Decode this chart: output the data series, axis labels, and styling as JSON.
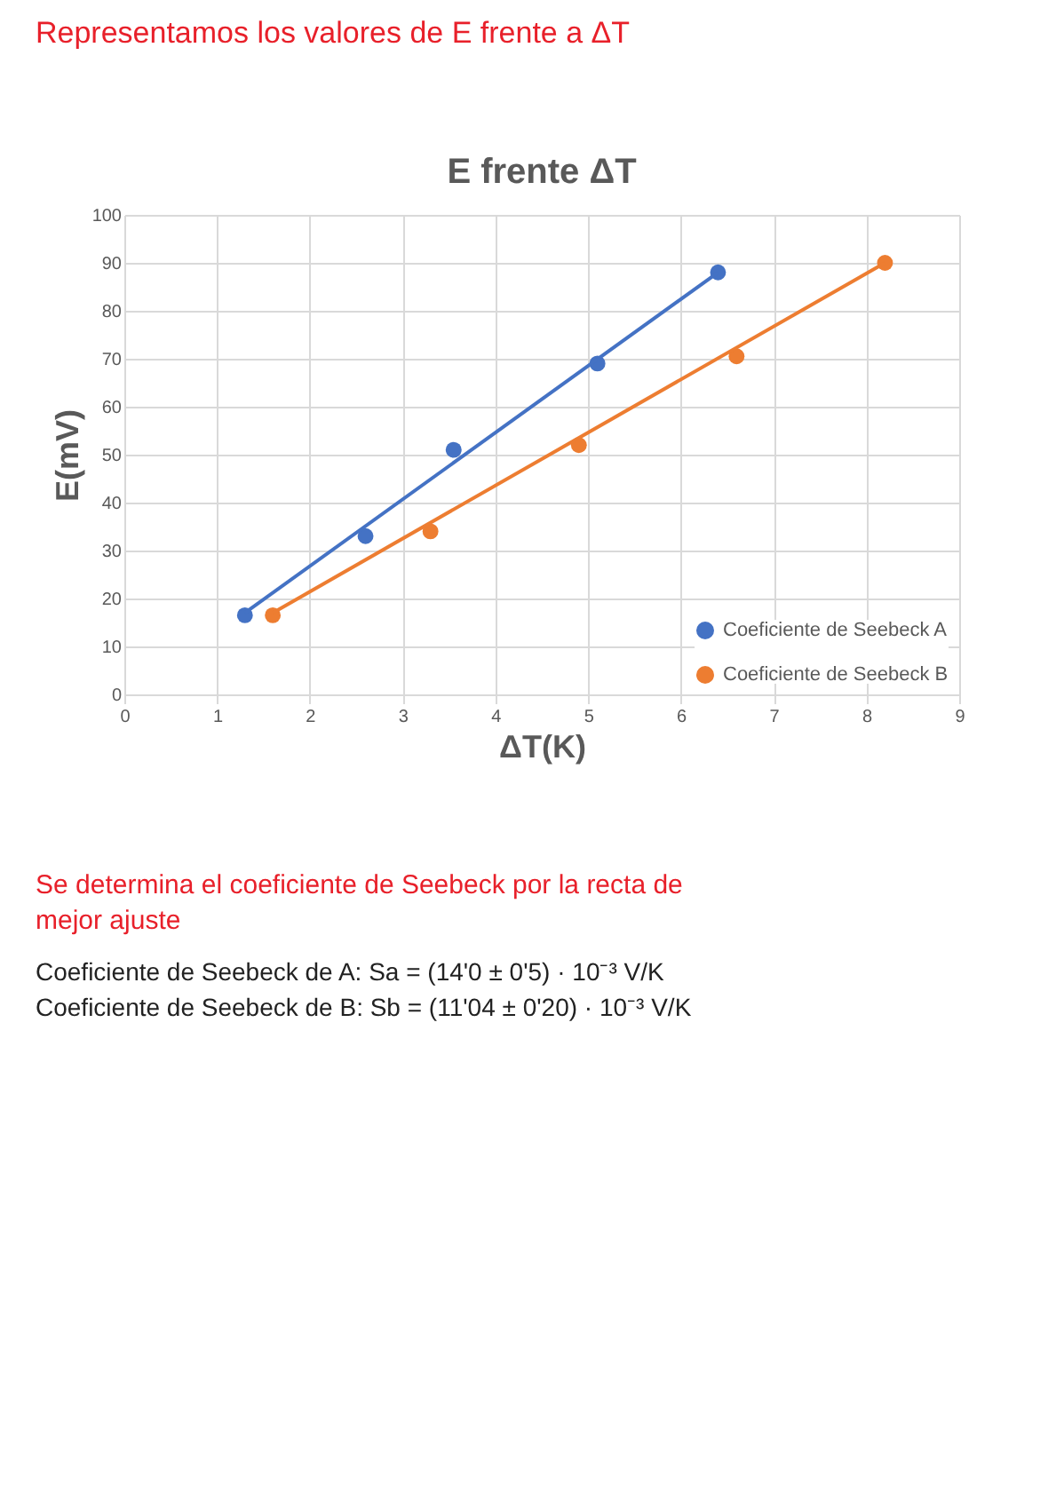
{
  "chart_data": {
    "type": "scatter",
    "title": "E frente ΔT",
    "xlabel": "ΔT(K)",
    "ylabel": "E(mV)",
    "series": [
      {
        "name": "Coeficiente de Seebeck A",
        "color": "#4472c4",
        "x": [
          1.3,
          2.6,
          3.55,
          5.1,
          6.4
        ],
        "values": [
          16.5,
          33,
          51,
          69,
          88
        ]
      },
      {
        "name": "Coeficiente de Seebeck B",
        "color": "#ed7d31",
        "x": [
          1.6,
          3.3,
          4.9,
          6.6,
          8.2
        ],
        "values": [
          16.5,
          34,
          52,
          70.5,
          90
        ]
      },
      {
        "type": "line",
        "marker": "none",
        "color": "#4472c4",
        "x": [
          1.3,
          6.4
        ],
        "values": [
          17,
          88
        ]
      },
      {
        "type": "line",
        "marker": "none",
        "color": "#ed7d31",
        "x": [
          1.6,
          8.2
        ],
        "values": [
          17,
          90
        ]
      }
    ],
    "xlim": [
      0,
      9
    ],
    "xticks": [
      0,
      1,
      2,
      3,
      4,
      5,
      6,
      7,
      8,
      9
    ],
    "ylim": [
      0,
      100
    ],
    "yticks": [
      0,
      10,
      20,
      30,
      40,
      50,
      60,
      70,
      80,
      90,
      100
    ],
    "grid": true,
    "legend": "bottom right",
    "marker": "circle",
    "annotations": [
      "Representamos los valores de E frente a ΔT",
      "Se determina el coeficiente de Seebeck por la recta de mejor ajuste",
      "Coeficiente de Seebeck de A: Sa = (14'0 ± 0'5) · 10⁻³ V/K",
      "Coeficiente de Seebeck de B: Sb = (11'04 ± 0'20) · 10⁻³ V/K"
    ]
  }
}
